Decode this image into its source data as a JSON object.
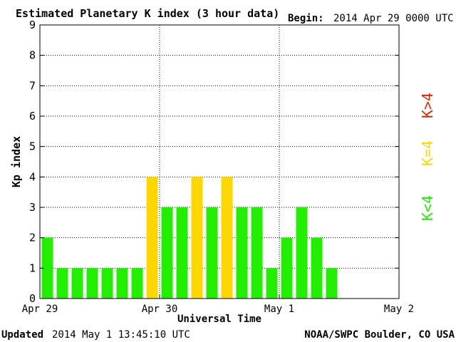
{
  "header": {
    "title": "Estimated Planetary K index (3 hour data)",
    "begin_label": "Begin:",
    "begin_value": "2014 Apr 29 0000 UTC"
  },
  "footer": {
    "updated_label": "Updated",
    "updated_value": "2014 May  1 13:45:10 UTC",
    "source": "NOAA/SWPC Boulder, CO USA"
  },
  "legend": [
    {
      "label": "K<4",
      "color": "#22ee00"
    },
    {
      "label": "K=4",
      "color": "#ffd700"
    },
    {
      "label": "K>4",
      "color": "#ee2200"
    }
  ],
  "colors": {
    "below4": "#22ee00",
    "equal4": "#ffd700",
    "above4": "#ee2200"
  },
  "chart_data": {
    "type": "bar",
    "title": "Estimated Planetary K index (3 hour data)",
    "xlabel": "Universal Time",
    "ylabel": "Kp index",
    "ylim": [
      0,
      9
    ],
    "yticks": [
      0,
      1,
      2,
      3,
      4,
      5,
      6,
      7,
      8,
      9
    ],
    "xticks": [
      "Apr 29",
      "Apr 30",
      "May 1",
      "May 2"
    ],
    "grid": true,
    "interval_hours": 3,
    "total_intervals": 24,
    "values": [
      2,
      1,
      1,
      1,
      1,
      1,
      1,
      4,
      3,
      3,
      4,
      3,
      4,
      3,
      3,
      1,
      2,
      3,
      2,
      1
    ]
  }
}
